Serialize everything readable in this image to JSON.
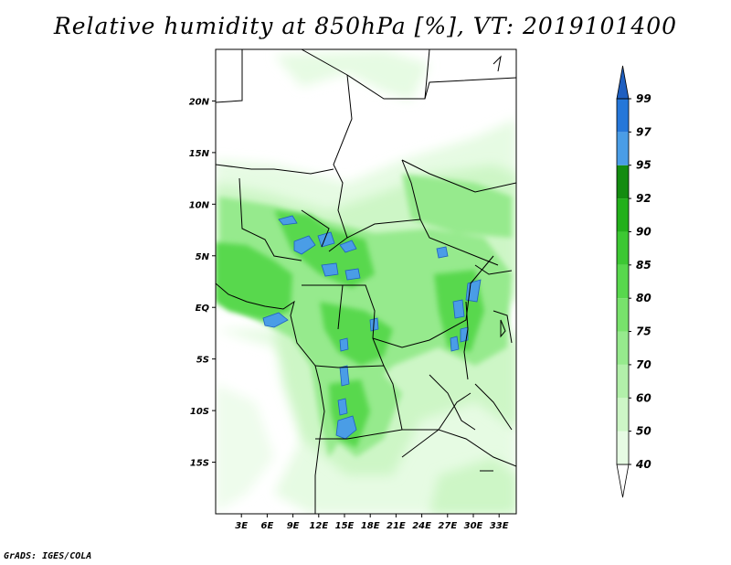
{
  "title": "Relative humidity at 850hPa [%], VT: 2019101400",
  "credit": "GrADS: IGES/COLA",
  "map": {
    "lon_range": [
      0,
      35
    ],
    "lat_range": [
      -20,
      25
    ],
    "lat_labels": [
      "20N",
      "15N",
      "10N",
      "5N",
      "EQ",
      "5S",
      "10S",
      "15S"
    ],
    "lat_values": [
      20,
      15,
      10,
      5,
      0,
      -5,
      -10,
      -15
    ],
    "lon_labels": [
      "3E",
      "6E",
      "9E",
      "12E",
      "15E",
      "18E",
      "21E",
      "24E",
      "27E",
      "30E",
      "33E"
    ],
    "lon_values": [
      3,
      6,
      9,
      12,
      15,
      18,
      21,
      24,
      27,
      30,
      33
    ]
  },
  "colorbar": {
    "levels": [
      40,
      50,
      60,
      70,
      75,
      80,
      85,
      90,
      92,
      95,
      97,
      99
    ],
    "labels": [
      "40",
      "50",
      "60",
      "70",
      "75",
      "80",
      "85",
      "90",
      "92",
      "95",
      "97",
      "99"
    ],
    "colors": [
      "#ffffff",
      "#e6fbe3",
      "#cdf6c6",
      "#b2f0aa",
      "#96ea8d",
      "#78e26c",
      "#58d84d",
      "#3cc833",
      "#22b01b",
      "#138c10",
      "#4a9de6",
      "#2577d9",
      "#1f5fc0"
    ]
  }
}
